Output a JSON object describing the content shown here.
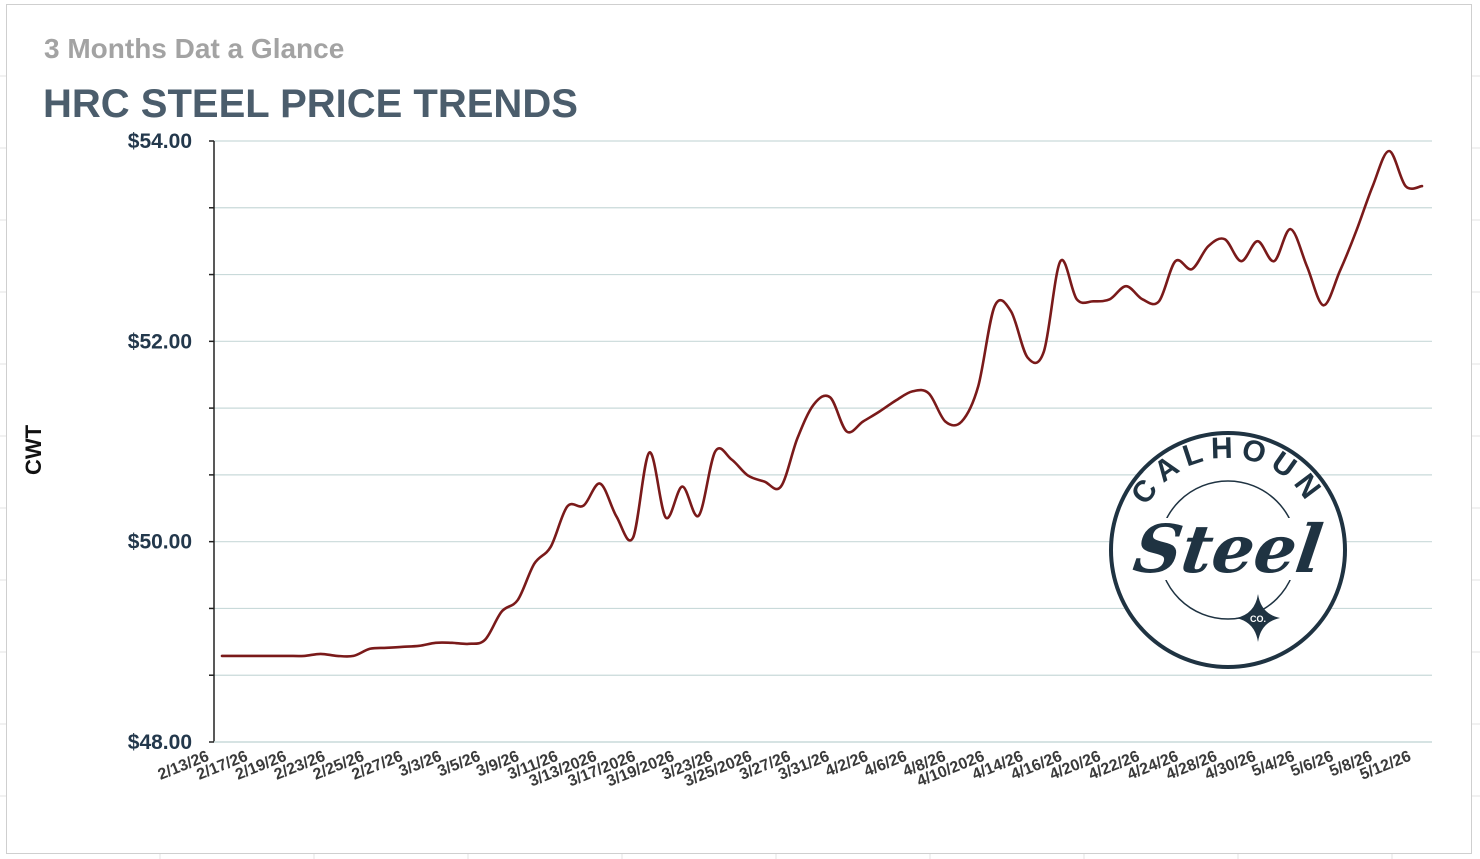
{
  "header": {
    "subtitle": "3 Months Dat a Glance",
    "title": "HRC STEEL PRICE TRENDS"
  },
  "logo": {
    "top_text": "CALHOUN",
    "script_text": "Steel",
    "small_text": "CO.",
    "color": "#1f3342"
  },
  "colors": {
    "line": "#7a1a1a",
    "gridline": "#c9dada",
    "axis": "#222222",
    "ytick_text": "#23384c",
    "title": "#4b5d6c",
    "subtitle": "#a3a3a3"
  },
  "chart_data": {
    "type": "line",
    "title": "HRC STEEL PRICE TRENDS",
    "subtitle": "3 Months Dat a Glance",
    "xlabel": "",
    "ylabel": "CWT",
    "ylim": [
      48,
      54
    ],
    "y_ticks": [
      "$48.00",
      "$50.00",
      "$52.00",
      "$54.00"
    ],
    "y_tick_values": [
      48,
      50,
      52,
      54
    ],
    "grid": "horizontal",
    "x_tick_labels": [
      "2/13/26",
      "2/17/26",
      "2/19/26",
      "2/23/26",
      "2/25/26",
      "2/27/26",
      "3/3/26",
      "3/5/26",
      "3/9/26",
      "3/11/26",
      "3/13/2026",
      "3/17/2026",
      "3/19/2026",
      "3/23/26",
      "3/25/2026",
      "3/27/26",
      "3/31/26",
      "4/2/26",
      "4/6/26",
      "4/8/26",
      "4/10/2026",
      "4/14/26",
      "4/16/26",
      "4/20/26",
      "4/22/26",
      "4/24/26",
      "4/28/26",
      "4/30/26",
      "5/4/26",
      "5/6/26",
      "5/8/26",
      "5/12/26"
    ],
    "series": [
      {
        "values": [
          48.86,
          48.86,
          48.86,
          48.86,
          48.86,
          48.86,
          48.88,
          48.86,
          48.86,
          48.93,
          48.94,
          48.95,
          48.96,
          48.99,
          48.99,
          48.98,
          49.02,
          49.3,
          49.42,
          49.78,
          49.95,
          50.35,
          50.36,
          50.58,
          50.25,
          50.04,
          50.89,
          50.24,
          50.55,
          50.26,
          50.9,
          50.82,
          50.66,
          50.6,
          50.55,
          51.03,
          51.37,
          51.44,
          51.1,
          51.2,
          51.3,
          51.41,
          51.5,
          51.48,
          51.2,
          51.2,
          51.55,
          52.35,
          52.3,
          51.84,
          51.9,
          52.8,
          52.42,
          52.4,
          52.42,
          52.55,
          52.42,
          52.4,
          52.8,
          52.72,
          52.95,
          53.02,
          52.8,
          53.0,
          52.8,
          53.12,
          52.75,
          52.36,
          52.7,
          53.1,
          53.55,
          53.9,
          53.55,
          53.55
        ]
      }
    ]
  }
}
